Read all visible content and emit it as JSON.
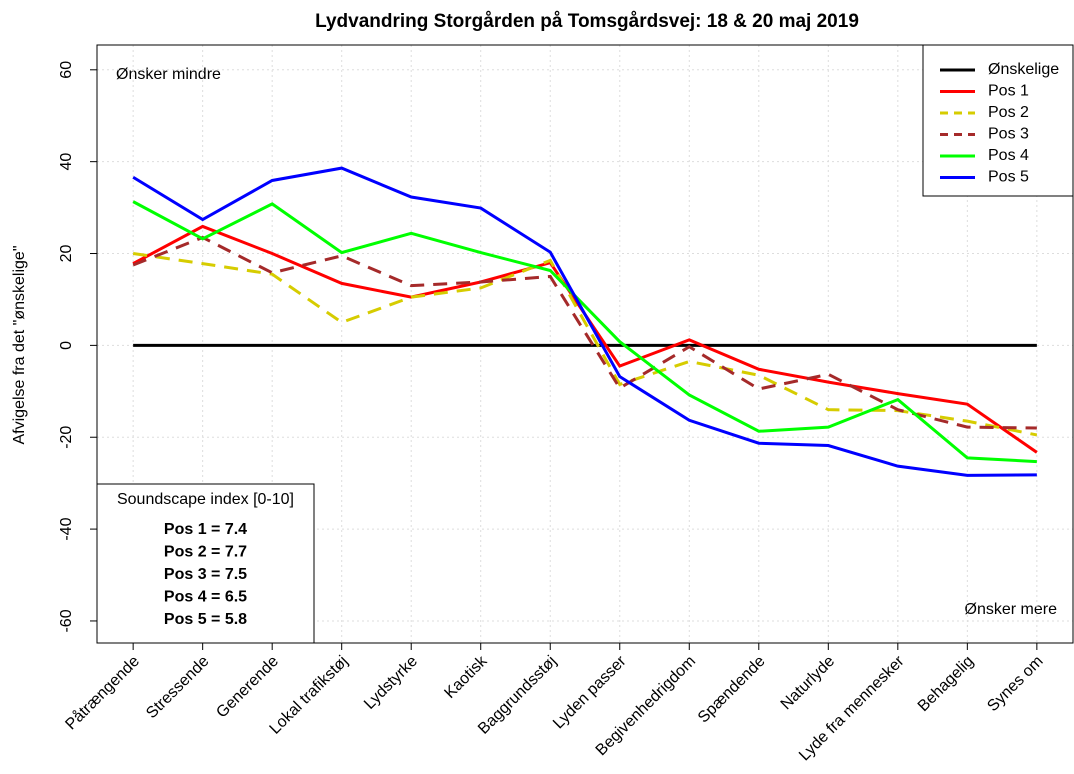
{
  "chart_data": {
    "type": "line",
    "title": "Lydvandring Storgården på Tomsgårdsvej: 18 & 20 maj 2019",
    "y_label": "Afvigelse fra det \"ønskelige\"",
    "categories": [
      "Påtrængende",
      "Stressende",
      "Generende",
      "Lokal trafikstøj",
      "Lydstyrke",
      "Kaotisk",
      "Baggrundsstøj",
      "Lyden passer",
      "Begivenhedrigdom",
      "Spændende",
      "Naturlyde",
      "Lyde fra mennesker",
      "Behagelig",
      "Synes om"
    ],
    "series": [
      {
        "name": "Ønskelige",
        "color": "#000000",
        "dashed": false,
        "values": [
          0,
          0,
          0,
          0,
          0,
          0,
          0,
          0,
          0,
          0,
          0,
          0,
          0,
          0
        ]
      },
      {
        "name": "Pos 1",
        "color": "#ff0000",
        "dashed": false,
        "values": [
          17.8,
          25.9,
          20,
          13.5,
          10.5,
          13.8,
          18,
          -4.5,
          1.2,
          -5.2,
          -8,
          -10.5,
          -12.8,
          -23.3
        ]
      },
      {
        "name": "Pos 2",
        "color": "#d6cc00",
        "dashed": true,
        "values": [
          20,
          17.8,
          15.5,
          5,
          10.5,
          12.5,
          18.5,
          -8.5,
          -3.5,
          -6.5,
          -14,
          -14.2,
          -16.5,
          -19.5
        ]
      },
      {
        "name": "Pos 3",
        "color": "#a52a2a",
        "dashed": true,
        "values": [
          17.5,
          23.5,
          15.8,
          19.5,
          13,
          13.8,
          15,
          -9.3,
          -0.3,
          -9.5,
          -6.3,
          -14,
          -17.8,
          -18
        ]
      },
      {
        "name": "Pos 4",
        "color": "#00ff00",
        "dashed": false,
        "values": [
          31.3,
          23.2,
          30.8,
          20.2,
          24.4,
          20.2,
          16.3,
          0.8,
          -10.8,
          -18.7,
          -17.8,
          -11.8,
          -24.5,
          -25.3
        ]
      },
      {
        "name": "Pos 5",
        "color": "#0000ff",
        "dashed": false,
        "values": [
          36.6,
          27.4,
          35.9,
          38.6,
          32.3,
          29.9,
          20.3,
          -6.8,
          -16.3,
          -21.3,
          -21.8,
          -26.3,
          -28.3,
          -28.2
        ]
      }
    ],
    "ylim": [
      -64.8,
      65.4
    ],
    "yticks": [
      -60,
      -40,
      -20,
      0,
      20,
      40,
      60
    ],
    "grid": true,
    "legend": "top-right",
    "annotations": [
      "Ønsker mindre",
      "Ønsker mere"
    ],
    "index_box": {
      "title": "Soundscape index [0-10]",
      "lines": [
        "Pos 1 = 7.4",
        "Pos 2 = 7.7",
        "Pos 3 = 7.5",
        "Pos 4 = 6.5",
        "Pos 5 = 5.8"
      ]
    }
  }
}
